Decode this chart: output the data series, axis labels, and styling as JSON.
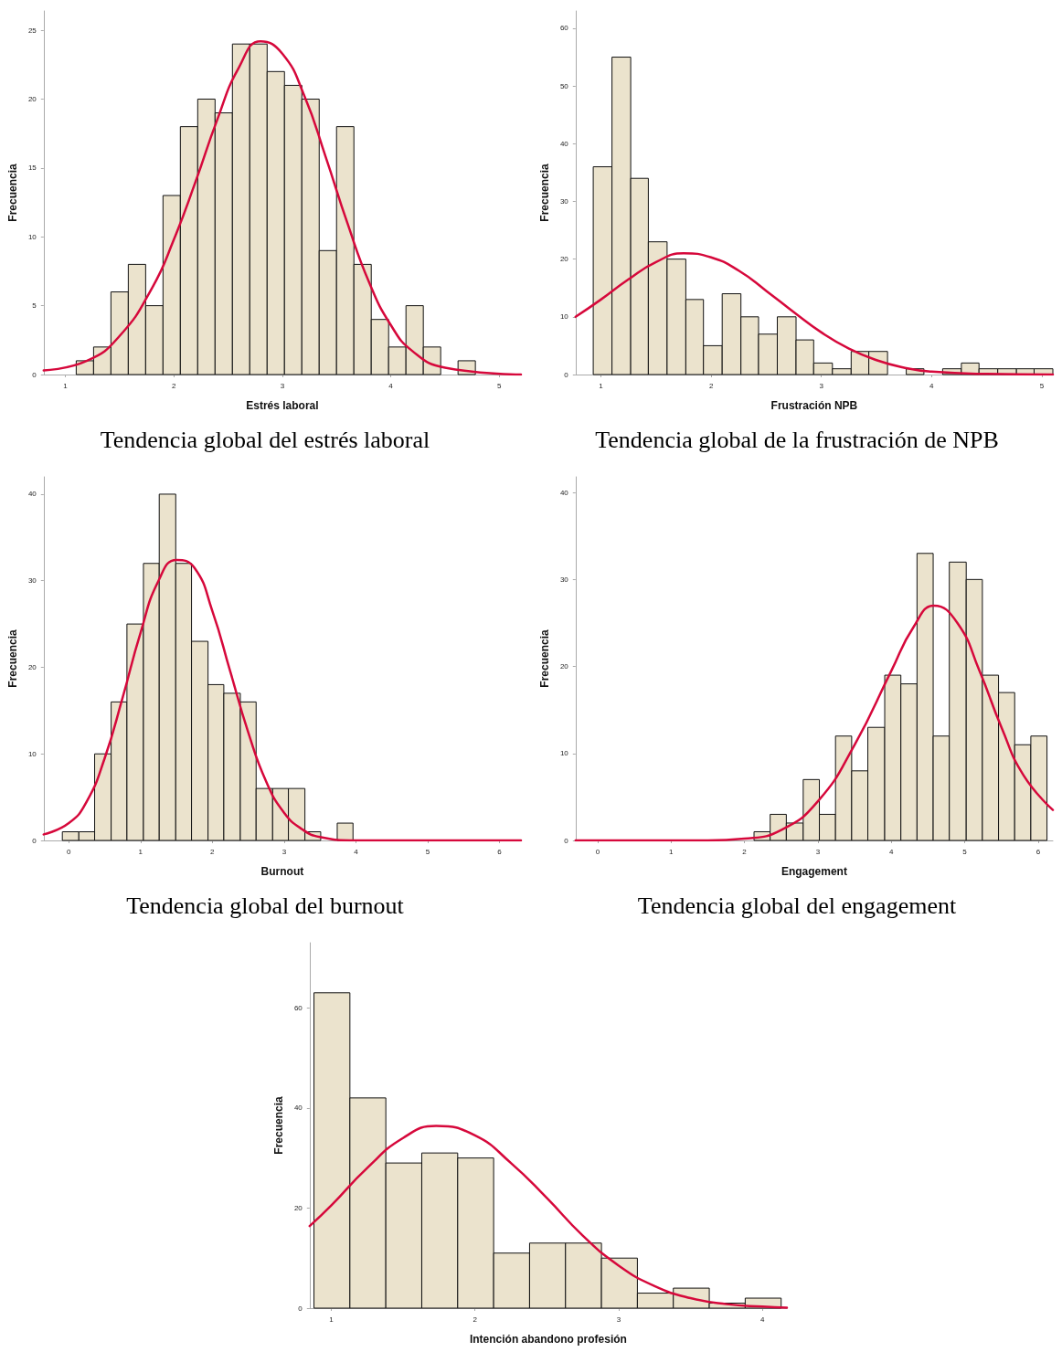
{
  "chart_data": [
    {
      "type": "histogram",
      "title": "Tendencia global del estrés laboral",
      "xlabel": "Estrés laboral",
      "ylabel": "Frecuencia",
      "xlim": [
        0.8,
        5.2
      ],
      "xticks": [
        1,
        2,
        3,
        4,
        5
      ],
      "ylim": [
        0,
        26.4
      ],
      "yticks": [
        0,
        5,
        10,
        15,
        20,
        25
      ],
      "marker": "none",
      "series": [
        {
          "color": "#ebe3cd",
          "bins": [
            1.1,
            1.26,
            1.42,
            1.58,
            1.74,
            1.9,
            2.06,
            2.22,
            2.38,
            2.54,
            2.7,
            2.86,
            3.02,
            3.18,
            3.34,
            3.5,
            3.66,
            3.82,
            3.98,
            4.14,
            4.3,
            4.46,
            4.62,
            4.78
          ],
          "values": [
            1,
            2,
            6,
            8,
            5,
            13,
            18,
            20,
            19,
            24,
            24,
            22,
            21,
            20,
            9,
            18,
            8,
            4,
            2,
            5,
            2,
            0,
            1
          ]
        },
        {
          "type": "line",
          "color": "#d6083b",
          "x": [
            0.8,
            1.2,
            1.5,
            1.8,
            2.0,
            2.2,
            2.4,
            2.6,
            2.8,
            3.0,
            3.2,
            3.4,
            3.6,
            3.8,
            4.0,
            4.2,
            4.5,
            5.2
          ],
          "values": [
            0.3,
            1.0,
            2.8,
            6.3,
            9.8,
            14,
            18.5,
            22.3,
            24.2,
            23.3,
            20.3,
            15.8,
            11,
            6.7,
            3.6,
            1.7,
            0.5,
            0
          ]
        }
      ]
    },
    {
      "type": "histogram",
      "title": "Tendencia global de la frustración de NPB",
      "xlabel": "Frustración NPB",
      "ylabel": "Frecuencia",
      "xlim": [
        0.77,
        5.1
      ],
      "xticks": [
        1,
        2,
        3,
        4,
        5
      ],
      "ylim": [
        0,
        63
      ],
      "yticks": [
        0,
        10,
        20,
        30,
        40,
        50,
        60
      ],
      "marker": "none",
      "series": [
        {
          "color": "#ebe3cd",
          "bins": [
            0.93,
            1.1,
            1.27,
            1.43,
            1.6,
            1.77,
            1.93,
            2.1,
            2.27,
            2.43,
            2.6,
            2.77,
            2.93,
            3.1,
            3.27,
            3.43,
            3.6,
            3.77,
            3.93,
            4.1,
            4.27,
            4.43,
            4.6,
            4.77,
            4.93,
            5.1
          ],
          "values": [
            36,
            55,
            34,
            23,
            20,
            13,
            5,
            14,
            10,
            7,
            10,
            6,
            2,
            1,
            4,
            4,
            0,
            1,
            0,
            1,
            2,
            1,
            1,
            1,
            1
          ]
        },
        {
          "type": "line",
          "color": "#d6083b",
          "x": [
            0.77,
            1.0,
            1.25,
            1.5,
            1.75,
            2.0,
            2.25,
            2.5,
            2.75,
            3.0,
            3.25,
            3.5,
            3.75,
            4.0,
            4.5,
            5.1
          ],
          "values": [
            10,
            13,
            16.5,
            19.5,
            21,
            20.3,
            18,
            14.5,
            10.8,
            7.3,
            4.5,
            2.5,
            1.2,
            0.5,
            0.1,
            0
          ]
        }
      ]
    },
    {
      "type": "histogram",
      "title": "Tendencia global del burnout",
      "xlabel": "Burnout",
      "ylabel": "Frecuencia",
      "xlim": [
        -0.35,
        6.3
      ],
      "xticks": [
        0,
        1,
        2,
        3,
        4,
        5,
        6
      ],
      "ylim": [
        0,
        42
      ],
      "yticks": [
        0,
        10,
        20,
        30,
        40
      ],
      "marker": "none",
      "series": [
        {
          "color": "#ebe3cd",
          "bins": [
            -0.09,
            0.14,
            0.36,
            0.59,
            0.81,
            1.04,
            1.26,
            1.49,
            1.71,
            1.94,
            2.16,
            2.39,
            2.61,
            2.84,
            3.06,
            3.29,
            3.51,
            3.74,
            3.96
          ],
          "values": [
            1,
            1,
            10,
            16,
            25,
            32,
            40,
            32,
            23,
            18,
            17,
            16,
            6,
            6,
            6,
            1,
            0,
            2
          ]
        },
        {
          "type": "line",
          "color": "#d6083b",
          "x": [
            -0.35,
            0,
            0.25,
            0.5,
            0.75,
            1.0,
            1.25,
            1.5,
            1.75,
            2.0,
            2.25,
            2.5,
            2.75,
            3.0,
            3.25,
            3.5,
            4.0,
            6.3
          ],
          "values": [
            0.7,
            2,
            4.5,
            9.5,
            16.5,
            24,
            30,
            32.4,
            31.5,
            26.5,
            19.5,
            12.5,
            6.8,
            3.2,
            1.3,
            0.4,
            0,
            0
          ]
        }
      ]
    },
    {
      "type": "histogram",
      "title": "Tendencia global del engagement",
      "xlabel": "Engagement",
      "ylabel": "Frecuencia",
      "xlim": [
        -0.3,
        6.2
      ],
      "xticks": [
        0,
        1,
        2,
        3,
        4,
        5,
        6
      ],
      "ylim": [
        0,
        41.8
      ],
      "yticks": [
        0,
        10,
        20,
        30,
        40
      ],
      "marker": "none",
      "series": [
        {
          "color": "#ebe3cd",
          "bins": [
            2.13,
            2.35,
            2.57,
            2.8,
            3.02,
            3.24,
            3.46,
            3.68,
            3.91,
            4.13,
            4.35,
            4.57,
            4.79,
            5.02,
            5.24,
            5.46,
            5.68,
            5.9,
            6.12
          ],
          "values": [
            1,
            3,
            2,
            7,
            3,
            12,
            8,
            13,
            19,
            18,
            33,
            12,
            32,
            30,
            19,
            17,
            11,
            12
          ]
        },
        {
          "type": "line",
          "color": "#d6083b",
          "x": [
            -0.3,
            1.5,
            2.0,
            2.5,
            3.0,
            3.5,
            4.0,
            4.3,
            4.58,
            4.9,
            5.2,
            5.5,
            5.8,
            6.2
          ],
          "values": [
            0,
            0,
            0.2,
            1.2,
            4.5,
            11,
            19.5,
            24.5,
            27,
            25,
            19.5,
            13,
            7.5,
            3.5
          ]
        }
      ]
    },
    {
      "type": "histogram",
      "xlabel": "Intención abandono profesión",
      "ylabel": "Frecuencia",
      "xlim": [
        0.85,
        4.17
      ],
      "xticks": [
        1,
        2,
        3,
        4
      ],
      "ylim": [
        0,
        73
      ],
      "yticks": [
        0,
        20,
        40,
        60
      ],
      "marker": "none",
      "series": [
        {
          "color": "#ebe3cd",
          "bins": [
            0.88,
            1.13,
            1.38,
            1.63,
            1.88,
            2.13,
            2.38,
            2.63,
            2.88,
            3.13,
            3.38,
            3.63,
            3.88,
            4.13
          ],
          "values": [
            63,
            42,
            29,
            31,
            30,
            11,
            13,
            13,
            10,
            3,
            4,
            1,
            2
          ]
        },
        {
          "type": "line",
          "color": "#d6083b",
          "x": [
            0.85,
            1.0,
            1.25,
            1.5,
            1.73,
            2.0,
            2.25,
            2.5,
            2.75,
            3.0,
            3.25,
            3.5,
            3.75,
            4.0,
            4.17
          ],
          "values": [
            16.4,
            20.5,
            28,
            34,
            36.4,
            34.5,
            29,
            22,
            14.5,
            8.5,
            4.4,
            2,
            0.8,
            0.3,
            0.1
          ]
        }
      ]
    }
  ]
}
